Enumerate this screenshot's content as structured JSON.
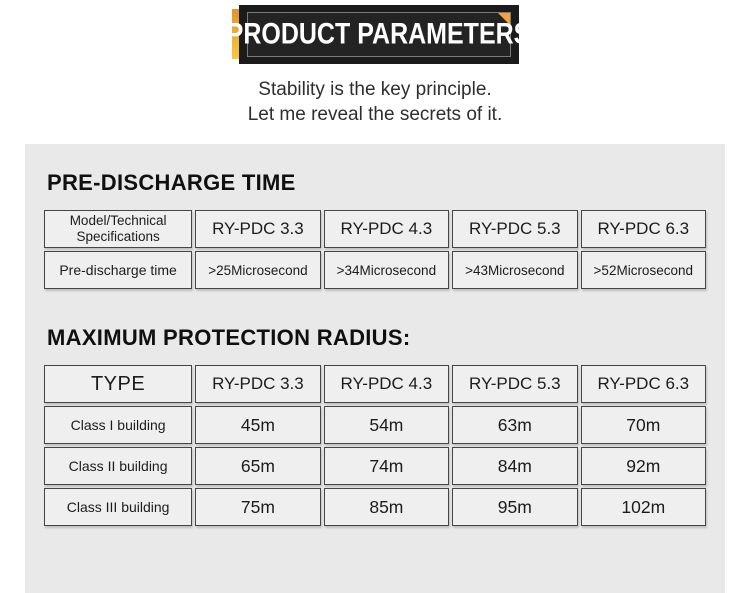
{
  "banner": {
    "title": "PRODUCT PARAMETERS"
  },
  "intro": {
    "line1": "Stability is the key principle.",
    "line2": "Let me reveal the secrets of it."
  },
  "colors": {
    "accent": "#F2A33C",
    "banner_bg": "#1B1B1B",
    "panel_bg": "#E9E9E9",
    "cell_bg": "#EFEFEF",
    "cell_border": "#454545"
  },
  "pre_discharge": {
    "heading": "PRE-DISCHARGE TIME",
    "columns": [
      "Model/Technical Specifications",
      "RY-PDC 3.3",
      "RY-PDC 4.3",
      "RY-PDC 5.3",
      "RY-PDC 6.3"
    ],
    "rows": [
      {
        "label": "Pre-discharge time",
        "values": [
          ">25Microsecond",
          ">34Microsecond",
          ">43Microsecond",
          ">52Microsecond"
        ]
      }
    ]
  },
  "protection_radius": {
    "heading": "MAXIMUM PROTECTION RADIUS:",
    "columns": [
      "TYPE",
      "RY-PDC 3.3",
      "RY-PDC 4.3",
      "RY-PDC 5.3",
      "RY-PDC 6.3"
    ],
    "rows": [
      {
        "label": "Class I building",
        "values": [
          "45m",
          "54m",
          "63m",
          "70m"
        ]
      },
      {
        "label": "Class II building",
        "values": [
          "65m",
          "74m",
          "84m",
          "92m"
        ]
      },
      {
        "label": "Class III building",
        "values": [
          "75m",
          "85m",
          "95m",
          "102m"
        ]
      }
    ]
  }
}
